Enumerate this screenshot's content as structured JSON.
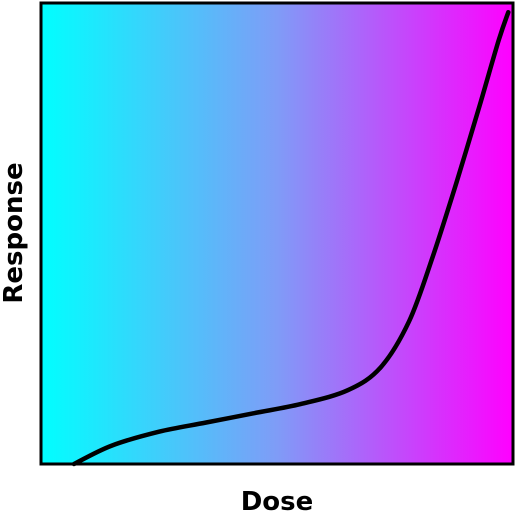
{
  "colors": {
    "gradient_start": "#00ffff",
    "gradient_mid": "#7f9cf7",
    "gradient_end": "#ff00ff",
    "frame": "#000000",
    "curve": "#000000"
  },
  "chart_data": {
    "type": "line",
    "title": "",
    "xlabel": "Dose",
    "ylabel": "Response",
    "grid": false,
    "legend": "none",
    "axis_ticks": "none",
    "xlim": [
      0,
      1
    ],
    "ylim": [
      0,
      1
    ],
    "series": [
      {
        "x": [
          0.07,
          0.15,
          0.25,
          0.35,
          0.45,
          0.55,
          0.65,
          0.72,
          0.78,
          0.83,
          0.88,
          0.93,
          0.97,
          0.99
        ],
        "y": [
          0.0,
          0.04,
          0.07,
          0.09,
          0.11,
          0.13,
          0.16,
          0.21,
          0.31,
          0.45,
          0.61,
          0.78,
          0.92,
          0.98
        ]
      }
    ]
  }
}
